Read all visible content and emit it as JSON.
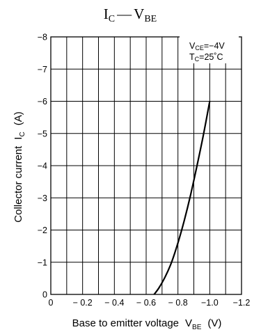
{
  "chart_data": {
    "type": "line",
    "title": {
      "main": "I",
      "main_sub": "C",
      "dash": "—",
      "second": "V",
      "second_sub": "BE"
    },
    "xlabel": {
      "text": "Base to emitter voltage",
      "symbol": "V",
      "symbol_sub": "BE",
      "unit": "(V)"
    },
    "ylabel": {
      "text": "Collector current",
      "symbol": "I",
      "symbol_sub": "C",
      "unit": "(A)"
    },
    "xlim": [
      0,
      -1.2
    ],
    "ylim": [
      0,
      -8
    ],
    "x_ticks": [
      "0",
      "− 0.2",
      "− 0.4",
      "− 0.6",
      "− 0.8",
      "−1.0",
      "−1.2"
    ],
    "y_ticks": [
      "0",
      "−1",
      "−2",
      "−3",
      "−4",
      "−5",
      "−6",
      "−7",
      "−8"
    ],
    "grid": true,
    "annotation": {
      "line1": {
        "sym": "V",
        "sub": "CE",
        "val": "=−4V"
      },
      "line2": {
        "sym": "T",
        "sub": "C",
        "val": "=25˚C"
      }
    },
    "series": [
      {
        "x": [
          -0.65,
          -0.68,
          -0.72,
          -0.76,
          -0.8,
          -0.84,
          -0.88,
          -0.92,
          -0.96,
          -1.0
        ],
        "y": [
          0,
          -0.2,
          -0.55,
          -1.0,
          -1.6,
          -2.3,
          -3.1,
          -4.0,
          -4.95,
          -6.0
        ]
      }
    ]
  },
  "colors": {
    "axes": "#000000",
    "grid": "#000000",
    "curve": "#000000"
  }
}
